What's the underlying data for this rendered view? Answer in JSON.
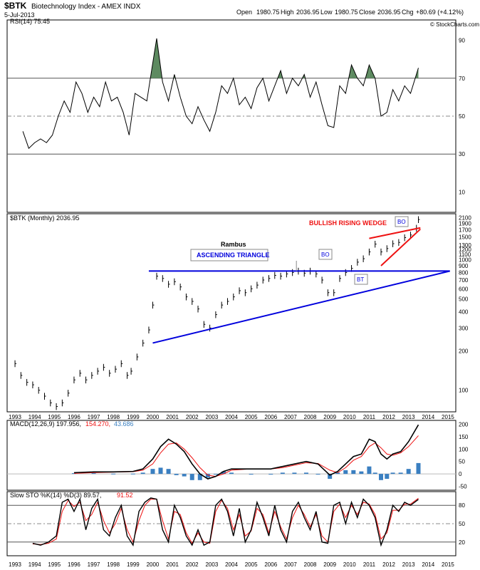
{
  "header": {
    "symbol": "$BTK",
    "name": "Biotechnology Index - AMEX INDX",
    "date": "5-Jul-2013",
    "open_label": "Open",
    "open": "1980.75",
    "high_label": "High",
    "high": "2036.95",
    "low_label": "Low",
    "low": "1980.75",
    "close_label": "Close",
    "close": "2036.95",
    "chg_label": "Chg",
    "chg": "+80.69 (+4.12%)",
    "watermark": "© StockCharts.com"
  },
  "colors": {
    "rsi_fill": "#5d8a60",
    "blue_line": "#0000dd",
    "red_line": "#ee1111",
    "macd_hist": "#3a7fc1",
    "signal": "#ee1111"
  },
  "chart_data": [
    {
      "type": "line",
      "panel": "RSI",
      "legend": "RSI(14) 75.45",
      "ylim": [
        0,
        100
      ],
      "yticks": [
        10,
        30,
        50,
        70,
        90
      ],
      "reference_lines": [
        30,
        50,
        70
      ],
      "x": [
        1993.4,
        1993.7,
        1994.0,
        1994.3,
        1994.6,
        1994.9,
        1995.2,
        1995.5,
        1995.8,
        1996.1,
        1996.4,
        1996.7,
        1997.0,
        1997.3,
        1997.6,
        1997.9,
        1998.2,
        1998.5,
        1998.8,
        1999.1,
        1999.4,
        1999.7,
        2000.0,
        2000.2,
        2000.5,
        2000.8,
        2001.1,
        2001.4,
        2001.7,
        2002.0,
        2002.3,
        2002.6,
        2002.9,
        2003.2,
        2003.5,
        2003.8,
        2004.1,
        2004.4,
        2004.7,
        2005.0,
        2005.3,
        2005.6,
        2005.9,
        2006.2,
        2006.5,
        2006.8,
        2007.1,
        2007.4,
        2007.7,
        2008.0,
        2008.3,
        2008.6,
        2008.9,
        2009.2,
        2009.5,
        2009.8,
        2010.1,
        2010.4,
        2010.7,
        2011.0,
        2011.3,
        2011.6,
        2011.9,
        2012.2,
        2012.5,
        2012.8,
        2013.1,
        2013.5
      ],
      "values": [
        42,
        33,
        36,
        38,
        36,
        40,
        50,
        58,
        52,
        68,
        62,
        52,
        60,
        55,
        68,
        58,
        60,
        52,
        40,
        62,
        60,
        58,
        78,
        91,
        68,
        58,
        72,
        60,
        50,
        46,
        55,
        48,
        42,
        52,
        66,
        62,
        70,
        56,
        60,
        54,
        65,
        70,
        58,
        66,
        74,
        62,
        70,
        66,
        72,
        60,
        68,
        56,
        45,
        44,
        66,
        62,
        77,
        70,
        66,
        77,
        70,
        50,
        52,
        64,
        58,
        66,
        62,
        75.45
      ],
      "series_name": "RSI(14)"
    },
    {
      "type": "ohlc",
      "panel": "Price",
      "legend": "$BTK (Monthly) 2036.95",
      "scale": "log",
      "ylim": [
        70,
        2200
      ],
      "yticks": [
        100,
        200,
        300,
        400,
        500,
        600,
        700,
        800,
        900,
        1000,
        1100,
        1200,
        1300,
        1500,
        1700,
        1900,
        2100
      ],
      "xticks": [
        "1993",
        "1994",
        "1995",
        "1996",
        "1997",
        "1998",
        "1999",
        "2000",
        "2001",
        "2002",
        "2003",
        "2004",
        "2005",
        "2006",
        "2007",
        "2008",
        "2009",
        "2010",
        "2011",
        "2012",
        "2013",
        "2014",
        "2015"
      ],
      "x": [
        1993.0,
        1993.3,
        1993.6,
        1993.9,
        1994.2,
        1994.5,
        1994.8,
        1995.1,
        1995.4,
        1995.7,
        1996.0,
        1996.3,
        1996.6,
        1996.9,
        1997.2,
        1997.5,
        1997.8,
        1998.1,
        1998.4,
        1998.7,
        1998.9,
        1999.2,
        1999.5,
        1999.8,
        2000.0,
        2000.2,
        2000.5,
        2000.8,
        2001.1,
        2001.4,
        2001.7,
        2002.0,
        2002.3,
        2002.6,
        2002.9,
        2003.2,
        2003.5,
        2003.8,
        2004.1,
        2004.4,
        2004.7,
        2005.0,
        2005.3,
        2005.6,
        2005.9,
        2006.2,
        2006.5,
        2006.8,
        2007.1,
        2007.4,
        2007.7,
        2008.0,
        2008.3,
        2008.6,
        2008.9,
        2009.2,
        2009.5,
        2009.8,
        2010.1,
        2010.4,
        2010.7,
        2011.0,
        2011.3,
        2011.6,
        2011.9,
        2012.2,
        2012.5,
        2012.8,
        2013.1,
        2013.4,
        2013.5
      ],
      "values": [
        160,
        130,
        115,
        110,
        100,
        90,
        80,
        75,
        80,
        95,
        120,
        135,
        120,
        130,
        140,
        150,
        135,
        145,
        160,
        130,
        140,
        180,
        230,
        290,
        450,
        750,
        720,
        650,
        680,
        620,
        520,
        480,
        420,
        320,
        300,
        380,
        450,
        480,
        520,
        580,
        560,
        600,
        640,
        700,
        720,
        760,
        750,
        780,
        800,
        820,
        790,
        820,
        780,
        700,
        560,
        560,
        720,
        800,
        860,
        960,
        1020,
        1150,
        1320,
        1150,
        1220,
        1330,
        1360,
        1480,
        1550,
        1750,
        2036.95
      ],
      "series_name": "$BTK (Monthly)"
    },
    {
      "type": "line",
      "panel": "MACD",
      "legend_main": "MACD(12,26,9) 197.956,",
      "legend_signal": "154.270,",
      "legend_hist": "43.686",
      "ylim": [
        -60,
        210
      ],
      "yticks": [
        -50,
        0,
        50,
        100,
        150,
        200
      ],
      "x": [
        1996.0,
        1997.0,
        1998.0,
        1999.0,
        1999.5,
        2000.0,
        2000.4,
        2000.8,
        2001.2,
        2001.6,
        2002.0,
        2002.4,
        2002.8,
        2003.2,
        2003.6,
        2004.0,
        2005.0,
        2006.0,
        2006.6,
        2007.2,
        2007.8,
        2008.4,
        2009.0,
        2009.4,
        2009.8,
        2010.2,
        2010.6,
        2011.0,
        2011.3,
        2011.6,
        2011.9,
        2012.2,
        2012.6,
        2013.0,
        2013.5
      ],
      "values": [
        5,
        8,
        8,
        10,
        20,
        60,
        110,
        140,
        120,
        90,
        40,
        0,
        -20,
        -10,
        10,
        20,
        20,
        20,
        30,
        40,
        50,
        40,
        -5,
        10,
        40,
        70,
        80,
        140,
        130,
        80,
        60,
        80,
        90,
        130,
        197.956
      ],
      "signal": [
        2,
        5,
        7,
        9,
        15,
        40,
        85,
        120,
        125,
        100,
        65,
        25,
        -5,
        -10,
        0,
        15,
        20,
        20,
        25,
        35,
        45,
        42,
        15,
        5,
        25,
        55,
        70,
        110,
        125,
        105,
        80,
        75,
        85,
        110,
        154.27
      ],
      "histogram": [
        3,
        3,
        1,
        1,
        5,
        20,
        25,
        20,
        -5,
        -10,
        -25,
        -25,
        -15,
        0,
        10,
        5,
        0,
        0,
        5,
        5,
        5,
        -2,
        -20,
        5,
        15,
        15,
        10,
        30,
        5,
        -25,
        -20,
        5,
        5,
        20,
        43.686
      ]
    },
    {
      "type": "line",
      "panel": "STO",
      "legend_main": "Slow STO %K(14) %D(3) 89.57,",
      "legend_signal": "91.52",
      "ylim": [
        0,
        100
      ],
      "yticks": [
        20,
        50,
        80
      ],
      "reference_lines": [
        20,
        50,
        80
      ],
      "x": [
        1993.9,
        1994.3,
        1994.7,
        1995.1,
        1995.4,
        1995.7,
        1996.0,
        1996.3,
        1996.6,
        1996.9,
        1997.2,
        1997.5,
        1997.8,
        1998.1,
        1998.4,
        1998.7,
        1999.0,
        1999.3,
        1999.6,
        1999.9,
        2000.2,
        2000.5,
        2000.8,
        2001.1,
        2001.4,
        2001.7,
        2002.0,
        2002.3,
        2002.6,
        2002.9,
        2003.2,
        2003.5,
        2003.8,
        2004.1,
        2004.4,
        2004.7,
        2005.0,
        2005.3,
        2005.6,
        2005.9,
        2006.2,
        2006.5,
        2006.8,
        2007.1,
        2007.4,
        2007.7,
        2008.0,
        2008.3,
        2008.6,
        2008.9,
        2009.2,
        2009.5,
        2009.8,
        2010.1,
        2010.4,
        2010.7,
        2011.0,
        2011.3,
        2011.6,
        2011.9,
        2012.2,
        2012.5,
        2012.8,
        2013.1,
        2013.5
      ],
      "values": [
        18,
        15,
        20,
        30,
        85,
        90,
        70,
        90,
        40,
        75,
        90,
        40,
        30,
        60,
        80,
        30,
        15,
        70,
        85,
        92,
        90,
        40,
        20,
        80,
        60,
        30,
        15,
        40,
        15,
        20,
        80,
        90,
        70,
        30,
        75,
        20,
        40,
        85,
        60,
        30,
        80,
        40,
        20,
        70,
        85,
        60,
        40,
        70,
        20,
        18,
        80,
        85,
        50,
        85,
        60,
        90,
        80,
        60,
        15,
        40,
        80,
        70,
        85,
        80,
        89.57
      ],
      "signal": [
        17,
        16,
        18,
        25,
        70,
        88,
        78,
        85,
        55,
        65,
        85,
        55,
        35,
        50,
        75,
        40,
        20,
        55,
        80,
        90,
        90,
        55,
        25,
        70,
        65,
        35,
        18,
        35,
        20,
        18,
        70,
        88,
        75,
        40,
        65,
        30,
        38,
        75,
        65,
        35,
        70,
        45,
        25,
        60,
        80,
        65,
        45,
        65,
        30,
        20,
        70,
        82,
        60,
        80,
        65,
        85,
        82,
        65,
        25,
        35,
        72,
        72,
        82,
        82,
        91.52
      ]
    }
  ],
  "annotations": {
    "rambus": "Rambus",
    "ascending_triangle": "ASCENDING TRIANGLE",
    "bullish_rising_wedge": "BULLISH RISING WEDGE",
    "bo_1": "BO",
    "bt": "BT",
    "bo_2": "BO"
  }
}
